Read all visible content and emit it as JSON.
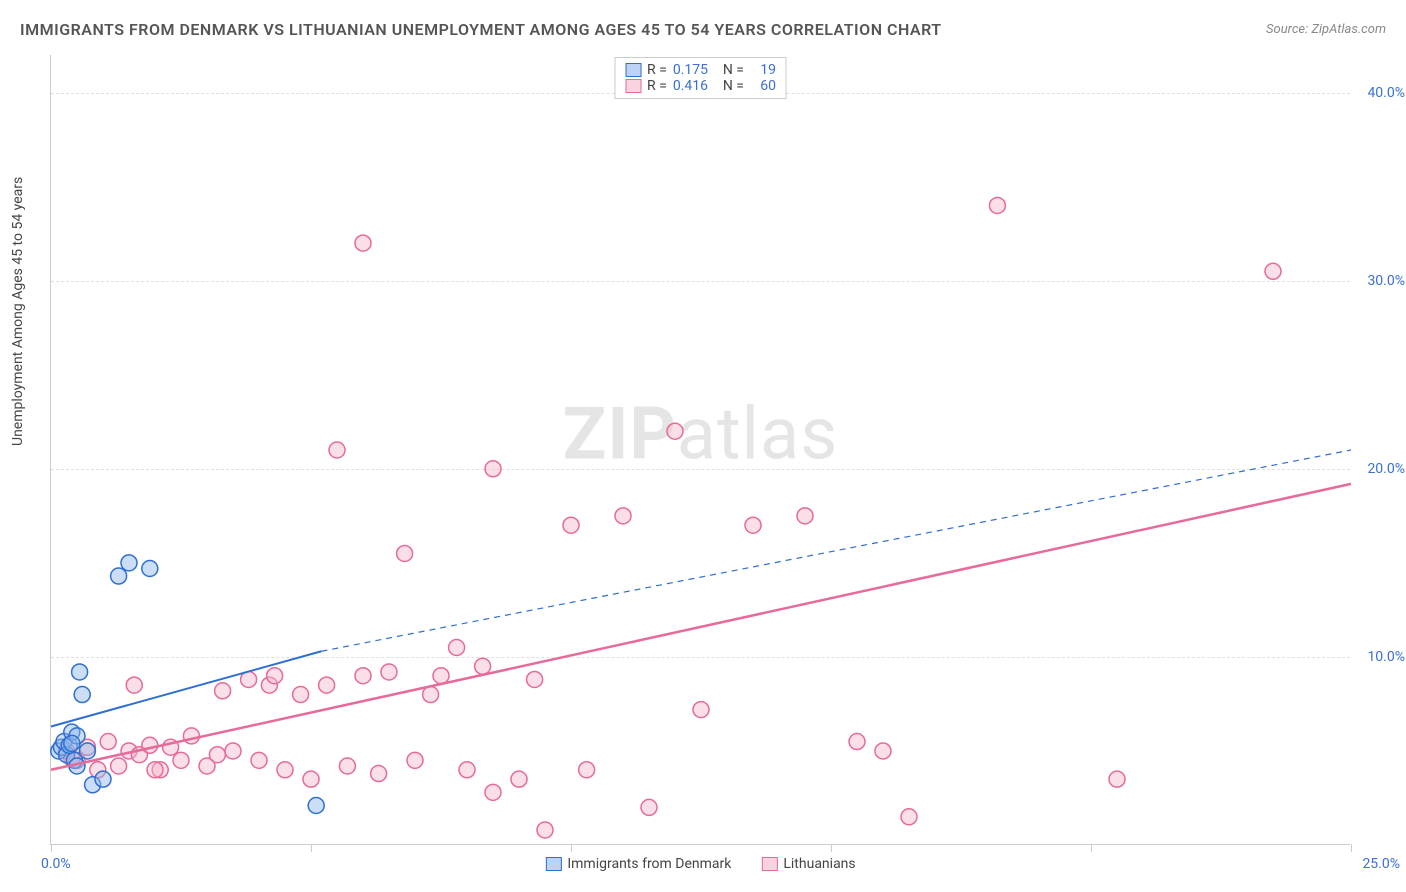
{
  "title": "IMMIGRANTS FROM DENMARK VS LITHUANIAN UNEMPLOYMENT AMONG AGES 45 TO 54 YEARS CORRELATION CHART",
  "source_label": "Source:",
  "source_value": "ZipAtlas.com",
  "watermark_zip": "ZIP",
  "watermark_atlas": "atlas",
  "y_axis_title": "Unemployment Among Ages 45 to 54 years",
  "chart": {
    "type": "scatter",
    "xlim": [
      0,
      25
    ],
    "ylim": [
      0,
      42
    ],
    "x_ticks": [
      0,
      5,
      10,
      15,
      20,
      25
    ],
    "y_gridlines": [
      10,
      20,
      30,
      40
    ],
    "x_label_min": "0.0%",
    "x_label_max": "25.0%",
    "y_labels": [
      {
        "v": 10,
        "t": "10.0%"
      },
      {
        "v": 20,
        "t": "20.0%"
      },
      {
        "v": 30,
        "t": "30.0%"
      },
      {
        "v": 40,
        "t": "40.0%"
      }
    ],
    "background_color": "#ffffff",
    "grid_color": "#e0e0e0",
    "axis_color": "#cccccc",
    "label_color": "#3b6fd8",
    "marker_radius": 8,
    "marker_stroke_width": 1.5,
    "marker_fill_opacity": 0.35,
    "series": [
      {
        "name": "Immigrants from Denmark",
        "stroke": "#2f6fd0",
        "fill": "#8fb6ec",
        "fill_rgba": "rgba(143,182,236,0.45)",
        "r": 0.175,
        "n": 19,
        "trend": {
          "x1": 0,
          "y1": 6.3,
          "x2": 5.2,
          "y2": 10.3,
          "dash_ext_x": 25,
          "dash_ext_y": 21.0,
          "width": 2,
          "color": "#2f6fd0"
        },
        "points": [
          [
            0.15,
            5.0
          ],
          [
            0.2,
            5.2
          ],
          [
            0.25,
            5.5
          ],
          [
            0.3,
            4.8
          ],
          [
            0.35,
            5.3
          ],
          [
            0.4,
            6.0
          ],
          [
            0.45,
            4.5
          ],
          [
            0.5,
            5.8
          ],
          [
            0.55,
            9.2
          ],
          [
            0.6,
            8.0
          ],
          [
            0.7,
            5.0
          ],
          [
            0.8,
            3.2
          ],
          [
            1.0,
            3.5
          ],
          [
            1.3,
            14.3
          ],
          [
            1.5,
            15.0
          ],
          [
            1.9,
            14.7
          ],
          [
            0.5,
            4.2
          ],
          [
            0.4,
            5.4
          ],
          [
            5.1,
            2.1
          ]
        ]
      },
      {
        "name": "Lithuanians",
        "stroke": "#e66a9b",
        "fill": "#f5b6cc",
        "fill_rgba": "rgba(245,182,204,0.45)",
        "r": 0.416,
        "n": 60,
        "trend": {
          "x1": 0,
          "y1": 4.0,
          "x2": 25,
          "y2": 19.2,
          "width": 2.5,
          "color": "#e66a9b"
        },
        "points": [
          [
            0.3,
            5.0
          ],
          [
            0.5,
            4.5
          ],
          [
            0.7,
            5.2
          ],
          [
            0.9,
            4.0
          ],
          [
            1.1,
            5.5
          ],
          [
            1.3,
            4.2
          ],
          [
            1.5,
            5.0
          ],
          [
            1.7,
            4.8
          ],
          [
            1.9,
            5.3
          ],
          [
            2.1,
            4.0
          ],
          [
            2.3,
            5.2
          ],
          [
            2.5,
            4.5
          ],
          [
            2.7,
            5.8
          ],
          [
            3.0,
            4.2
          ],
          [
            3.3,
            8.2
          ],
          [
            3.5,
            5.0
          ],
          [
            3.8,
            8.8
          ],
          [
            4.0,
            4.5
          ],
          [
            4.2,
            8.5
          ],
          [
            4.5,
            4.0
          ],
          [
            4.8,
            8.0
          ],
          [
            5.0,
            3.5
          ],
          [
            5.3,
            8.5
          ],
          [
            5.5,
            21.0
          ],
          [
            5.7,
            4.2
          ],
          [
            6.0,
            9.0
          ],
          [
            6.3,
            3.8
          ],
          [
            6.5,
            9.2
          ],
          [
            7.0,
            4.5
          ],
          [
            7.3,
            8.0
          ],
          [
            7.8,
            10.5
          ],
          [
            8.0,
            4.0
          ],
          [
            8.3,
            9.5
          ],
          [
            8.5,
            2.8
          ],
          [
            9.0,
            3.5
          ],
          [
            9.3,
            8.8
          ],
          [
            9.5,
            0.8
          ],
          [
            10.0,
            17.0
          ],
          [
            10.3,
            4.0
          ],
          [
            11.0,
            17.5
          ],
          [
            11.5,
            2.0
          ],
          [
            12.0,
            22.0
          ],
          [
            12.5,
            7.2
          ],
          [
            13.5,
            17.0
          ],
          [
            14.5,
            17.5
          ],
          [
            15.5,
            5.5
          ],
          [
            16.0,
            5.0
          ],
          [
            16.5,
            1.5
          ],
          [
            18.2,
            34.0
          ],
          [
            20.5,
            3.5
          ],
          [
            23.5,
            30.5
          ],
          [
            4.3,
            9.0
          ],
          [
            2.0,
            4.0
          ],
          [
            6.8,
            15.5
          ],
          [
            8.5,
            20.0
          ],
          [
            3.2,
            4.8
          ],
          [
            1.6,
            8.5
          ],
          [
            0.4,
            4.6
          ],
          [
            7.5,
            9.0
          ],
          [
            6.0,
            32.0
          ]
        ]
      }
    ],
    "legend_top": [
      {
        "swatch_fill": "rgba(143,182,236,0.6)",
        "swatch_stroke": "#2f6fd0",
        "r_label": "R =",
        "r": "0.175",
        "n_label": "N =",
        "n": "19"
      },
      {
        "swatch_fill": "rgba(245,182,204,0.6)",
        "swatch_stroke": "#e66a9b",
        "r_label": "R =",
        "r": "0.416",
        "n_label": "N =",
        "n": "60"
      }
    ],
    "legend_bottom": [
      {
        "swatch_fill": "rgba(143,182,236,0.6)",
        "swatch_stroke": "#2f6fd0",
        "label": "Immigrants from Denmark"
      },
      {
        "swatch_fill": "rgba(245,182,204,0.6)",
        "swatch_stroke": "#e66a9b",
        "label": "Lithuanians"
      }
    ]
  }
}
